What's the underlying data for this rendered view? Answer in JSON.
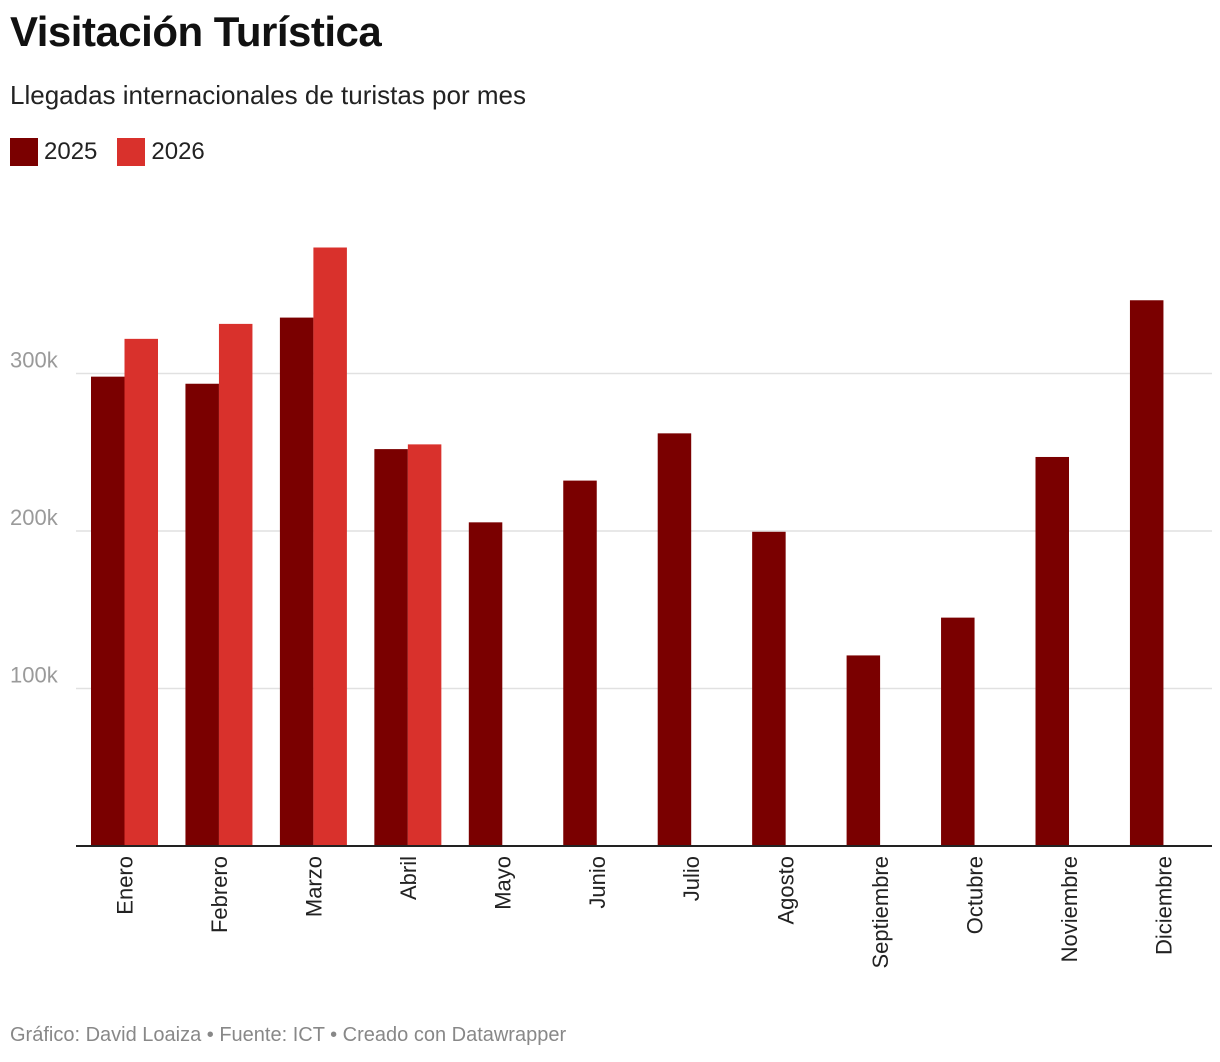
{
  "header": {
    "title": "Visitación Turística",
    "subtitle": "Llegadas internacionales de turistas por mes"
  },
  "footer": {
    "credit": "Gráfico: David Loaiza • Fuente: ICT • Creado con Datawrapper"
  },
  "chart_data": {
    "type": "bar",
    "categories": [
      "Enero",
      "Febrero",
      "Marzo",
      "Abril",
      "Mayo",
      "Junio",
      "Julio",
      "Agosto",
      "Septiembre",
      "Octubre",
      "Noviembre",
      "Diciembre"
    ],
    "series": [
      {
        "name": "2025",
        "color": "#7a0000",
        "values": [
          298000,
          293500,
          335500,
          252000,
          205500,
          232000,
          262000,
          199500,
          121000,
          145000,
          247000,
          346500
        ]
      },
      {
        "name": "2026",
        "color": "#d9312c",
        "values": [
          322000,
          331500,
          380000,
          255000,
          null,
          null,
          null,
          null,
          null,
          null,
          null,
          null
        ]
      }
    ],
    "yticks": [
      {
        "value": 100000,
        "label": "100k"
      },
      {
        "value": 200000,
        "label": "200k"
      },
      {
        "value": 300000,
        "label": "300k"
      }
    ],
    "ylim": [
      0,
      380000
    ],
    "grid": true,
    "legend_position": "top-left"
  }
}
